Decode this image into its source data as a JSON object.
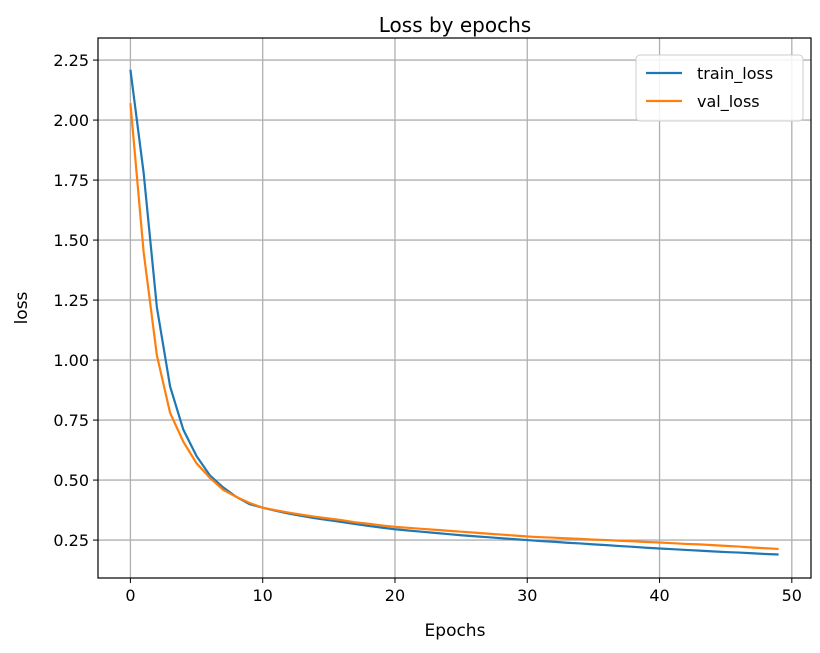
{
  "chart_data": {
    "type": "line",
    "title": "Loss by epochs",
    "xlabel": "Epochs",
    "ylabel": "loss",
    "xlim": [
      -2.45,
      51.45
    ],
    "ylim": [
      0.092,
      2.342
    ],
    "xticks": [
      0,
      10,
      20,
      30,
      40,
      50
    ],
    "xtick_labels": [
      "0",
      "10",
      "20",
      "30",
      "40",
      "50"
    ],
    "yticks": [
      0.25,
      0.5,
      0.75,
      1.0,
      1.25,
      1.5,
      1.75,
      2.0,
      2.25
    ],
    "ytick_labels": [
      "0.25",
      "0.50",
      "0.75",
      "1.00",
      "1.25",
      "1.50",
      "1.75",
      "2.00",
      "2.25"
    ],
    "grid": true,
    "legend_position": "top-right",
    "x": [
      0,
      1,
      2,
      3,
      4,
      5,
      6,
      7,
      8,
      9,
      10,
      11,
      12,
      13,
      14,
      15,
      16,
      17,
      18,
      19,
      20,
      21,
      22,
      23,
      24,
      25,
      26,
      27,
      28,
      29,
      30,
      31,
      32,
      33,
      34,
      35,
      36,
      37,
      38,
      39,
      40,
      41,
      42,
      43,
      44,
      45,
      46,
      47,
      48,
      49
    ],
    "series": [
      {
        "name": "train_loss",
        "color": "#1f77b4",
        "values": [
          2.21,
          1.78,
          1.22,
          0.89,
          0.71,
          0.6,
          0.52,
          0.47,
          0.43,
          0.4,
          0.385,
          0.372,
          0.36,
          0.35,
          0.341,
          0.333,
          0.325,
          0.317,
          0.309,
          0.302,
          0.295,
          0.29,
          0.285,
          0.28,
          0.275,
          0.27,
          0.266,
          0.262,
          0.258,
          0.254,
          0.25,
          0.246,
          0.243,
          0.239,
          0.236,
          0.232,
          0.229,
          0.225,
          0.222,
          0.218,
          0.215,
          0.212,
          0.209,
          0.206,
          0.203,
          0.2,
          0.198,
          0.195,
          0.192,
          0.19
        ]
      },
      {
        "name": "val_loss",
        "color": "#ff7f0e",
        "values": [
          2.07,
          1.45,
          1.02,
          0.78,
          0.66,
          0.57,
          0.51,
          0.46,
          0.43,
          0.405,
          0.385,
          0.374,
          0.364,
          0.355,
          0.347,
          0.34,
          0.333,
          0.324,
          0.318,
          0.311,
          0.305,
          0.301,
          0.297,
          0.293,
          0.289,
          0.285,
          0.281,
          0.277,
          0.273,
          0.269,
          0.265,
          0.262,
          0.26,
          0.257,
          0.255,
          0.252,
          0.25,
          0.247,
          0.245,
          0.242,
          0.24,
          0.237,
          0.234,
          0.232,
          0.229,
          0.226,
          0.223,
          0.219,
          0.216,
          0.213
        ]
      }
    ]
  }
}
